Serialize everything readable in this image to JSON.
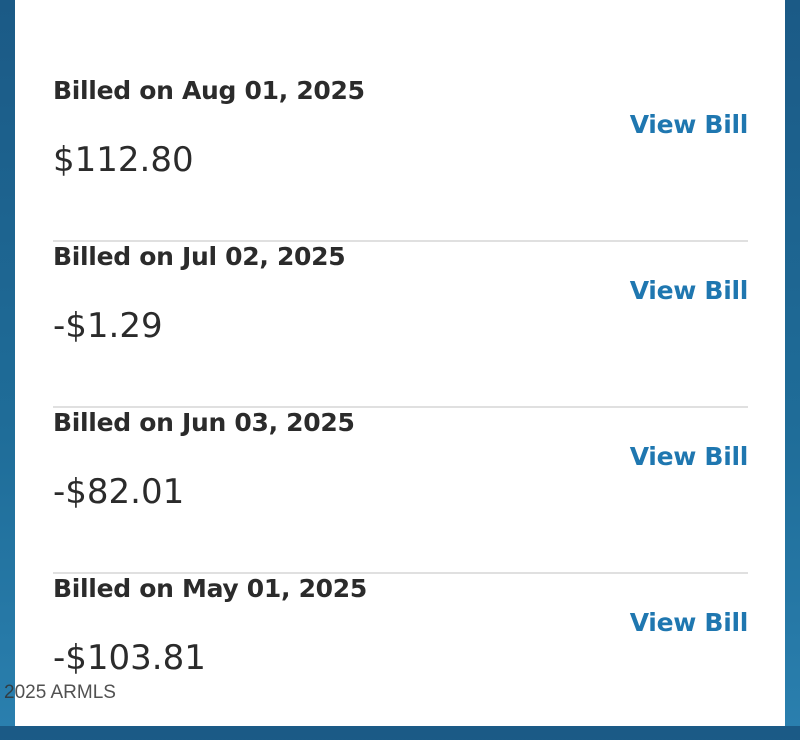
{
  "bills": [
    {
      "date": "Billed on Aug 01, 2025",
      "amount": "$112.80",
      "action": "View Bill"
    },
    {
      "date": "Billed on Jul 02, 2025",
      "amount": "-$1.29",
      "action": "View Bill"
    },
    {
      "date": "Billed on Jun 03, 2025",
      "amount": "-$82.01",
      "action": "View Bill"
    },
    {
      "date": "Billed on May 01, 2025",
      "amount": "-$103.81",
      "action": "View Bill"
    }
  ],
  "watermark": "2025 ARMLS",
  "colors": {
    "accent": "#1f77b0",
    "background": "#1b5a86"
  }
}
